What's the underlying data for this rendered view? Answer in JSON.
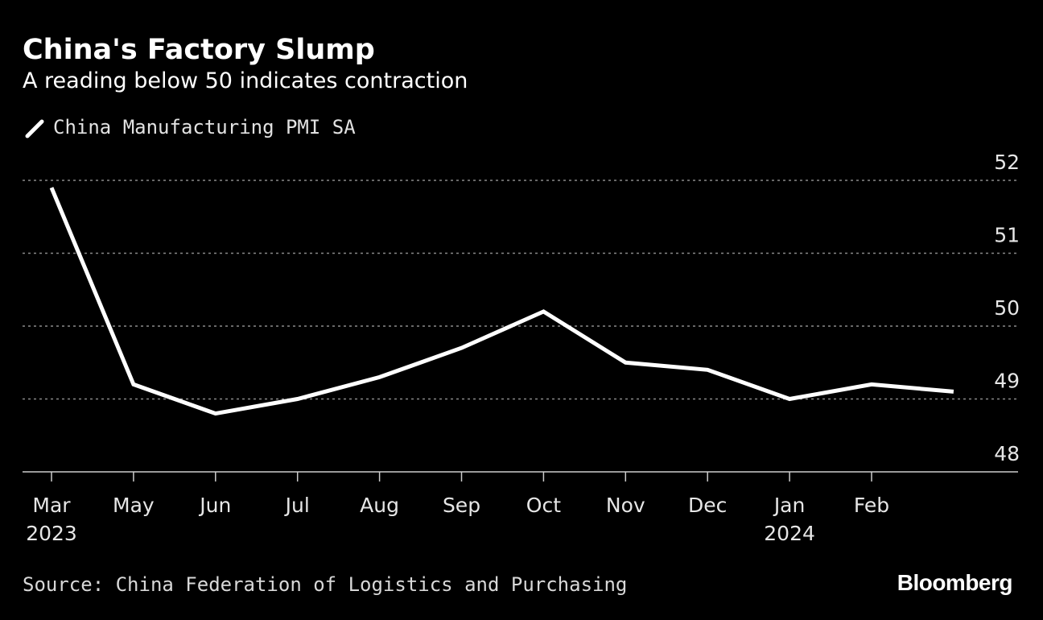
{
  "header": {
    "title": "China's Factory Slump",
    "subtitle": "A reading below 50 indicates contraction"
  },
  "legend": {
    "label": "China Manufacturing PMI SA"
  },
  "footer": {
    "source": "Source: China Federation of Logistics and Purchasing",
    "logo": "Bloomberg"
  },
  "colors": {
    "background": "#000000",
    "line": "#ffffff",
    "grid": "#8a8a8a",
    "axis": "#cccccc",
    "text": "#e6e6e6"
  },
  "chart_data": {
    "type": "line",
    "title": "China's Factory Slump",
    "subtitle": "A reading below 50 indicates contraction",
    "xlabel": "",
    "ylabel": "",
    "ylim": [
      48,
      52
    ],
    "yticks": [
      48,
      49,
      50,
      51,
      52
    ],
    "ytick_labels": [
      "48",
      "49",
      "50",
      "51",
      "52"
    ],
    "grid": true,
    "legend_position": "top-left",
    "x_ticks": [
      {
        "month": "Mar",
        "year": "2023"
      },
      {
        "month": "May",
        "year": ""
      },
      {
        "month": "Jun",
        "year": ""
      },
      {
        "month": "Jul",
        "year": ""
      },
      {
        "month": "Aug",
        "year": ""
      },
      {
        "month": "Sep",
        "year": ""
      },
      {
        "month": "Oct",
        "year": ""
      },
      {
        "month": "Nov",
        "year": ""
      },
      {
        "month": "Dec",
        "year": ""
      },
      {
        "month": "Jan",
        "year": "2024"
      },
      {
        "month": "Feb",
        "year": ""
      }
    ],
    "series": [
      {
        "name": "China Manufacturing PMI SA",
        "x": [
          "Mar 2023",
          "May 2023",
          "Jun 2023",
          "Jul 2023",
          "Aug 2023",
          "Sep 2023",
          "Oct 2023",
          "Nov 2023",
          "Dec 2023",
          "Jan 2024",
          "Feb 2024",
          "Mar 2024"
        ],
        "values": [
          51.9,
          49.2,
          48.8,
          49.0,
          49.3,
          49.7,
          50.2,
          49.5,
          49.4,
          49.0,
          49.2,
          49.1
        ]
      }
    ]
  }
}
